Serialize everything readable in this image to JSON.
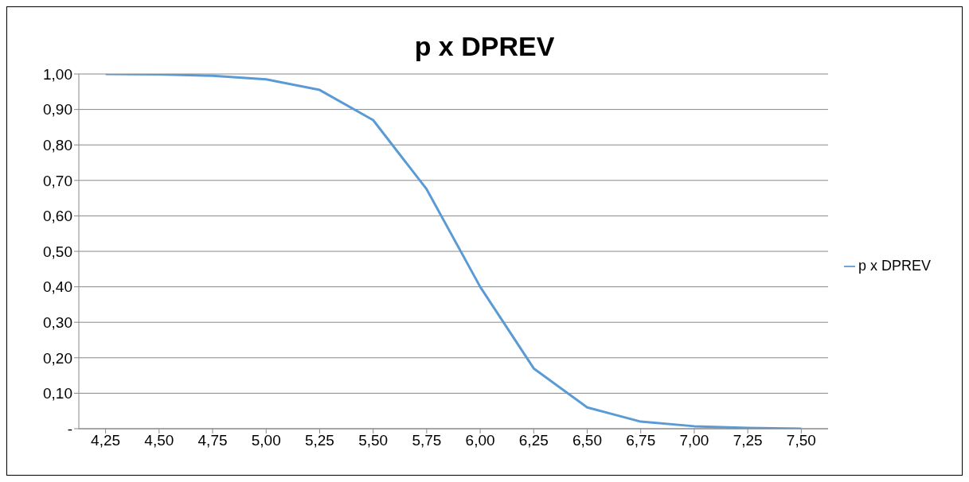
{
  "chart_data": {
    "type": "line",
    "title": "p x DPREV",
    "categories": [
      "4,25",
      "4,50",
      "4,75",
      "5,00",
      "5,25",
      "5,50",
      "5,75",
      "6,00",
      "6,25",
      "6,50",
      "6,75",
      "7,00",
      "7,25",
      "7,50"
    ],
    "series": [
      {
        "name": "p x DPREV",
        "color": "#5b9bd5",
        "values": [
          1.0,
          0.999,
          0.995,
          0.985,
          0.955,
          0.87,
          0.675,
          0.4,
          0.17,
          0.06,
          0.02,
          0.007,
          0.002,
          0.0
        ]
      }
    ],
    "ylim": [
      0,
      1
    ],
    "yticks": [
      {
        "value": 0,
        "label": "-"
      },
      {
        "value": 0.1,
        "label": "0,10"
      },
      {
        "value": 0.2,
        "label": "0,20"
      },
      {
        "value": 0.3,
        "label": "0,30"
      },
      {
        "value": 0.4,
        "label": "0,40"
      },
      {
        "value": 0.5,
        "label": "0,50"
      },
      {
        "value": 0.6,
        "label": "0,60"
      },
      {
        "value": 0.7,
        "label": "0,70"
      },
      {
        "value": 0.8,
        "label": "0,80"
      },
      {
        "value": 0.9,
        "label": "0,90"
      },
      {
        "value": 1,
        "label": "1,00"
      }
    ],
    "grid": "y",
    "legend": "right",
    "marker": "none",
    "line_style": "solid"
  }
}
